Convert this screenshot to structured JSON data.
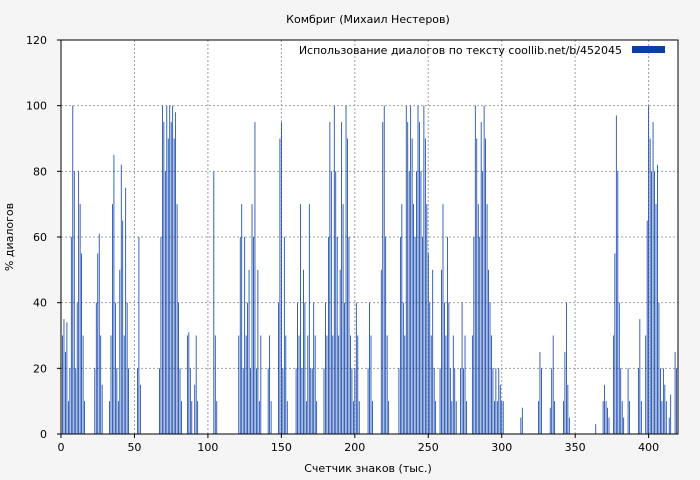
{
  "chart_data": {
    "type": "bar",
    "title": "Комбриг (Михаил Нестеров)",
    "xlabel": "Счетчик знаков (тыс.)",
    "ylabel": "% диалогов",
    "xlim": [
      0,
      420
    ],
    "ylim": [
      0,
      120
    ],
    "xticks": [
      0,
      50,
      100,
      150,
      200,
      250,
      300,
      350,
      400
    ],
    "yticks": [
      0,
      20,
      40,
      60,
      80,
      100,
      120
    ],
    "grid": true,
    "legend_position": "top-right",
    "series": [
      {
        "name": "Использование диалогов по тексту  coollib.net/b/452045",
        "color": "#0a3fa8",
        "bar_width": 0.5,
        "points": [
          [
            1,
            30
          ],
          [
            2,
            35
          ],
          [
            3,
            25
          ],
          [
            4,
            34
          ],
          [
            5,
            10
          ],
          [
            6,
            20
          ],
          [
            7,
            60
          ],
          [
            8,
            100
          ],
          [
            9,
            80
          ],
          [
            10,
            20
          ],
          [
            11,
            40
          ],
          [
            12,
            80
          ],
          [
            13,
            70
          ],
          [
            14,
            55
          ],
          [
            15,
            30
          ],
          [
            16,
            10
          ],
          [
            23,
            20
          ],
          [
            24,
            40
          ],
          [
            25,
            55
          ],
          [
            26,
            61
          ],
          [
            27,
            30
          ],
          [
            28,
            15
          ],
          [
            33,
            10
          ],
          [
            34,
            30
          ],
          [
            35,
            70
          ],
          [
            36,
            85
          ],
          [
            37,
            40
          ],
          [
            38,
            20
          ],
          [
            39,
            10
          ],
          [
            40,
            50
          ],
          [
            41,
            82
          ],
          [
            42,
            65
          ],
          [
            43,
            30
          ],
          [
            44,
            75
          ],
          [
            45,
            40
          ],
          [
            46,
            20
          ],
          [
            52,
            20
          ],
          [
            53,
            60
          ],
          [
            54,
            15
          ],
          [
            67,
            20
          ],
          [
            68,
            60
          ],
          [
            69,
            100
          ],
          [
            70,
            95
          ],
          [
            71,
            80
          ],
          [
            72,
            100
          ],
          [
            73,
            90
          ],
          [
            74,
            100
          ],
          [
            75,
            95
          ],
          [
            76,
            100
          ],
          [
            77,
            90
          ],
          [
            78,
            98
          ],
          [
            79,
            70
          ],
          [
            80,
            40
          ],
          [
            81,
            20
          ],
          [
            82,
            10
          ],
          [
            86,
            30
          ],
          [
            87,
            31
          ],
          [
            88,
            20
          ],
          [
            89,
            10
          ],
          [
            91,
            15
          ],
          [
            92,
            30
          ],
          [
            93,
            10
          ],
          [
            104,
            80
          ],
          [
            105,
            30
          ],
          [
            106,
            10
          ],
          [
            121,
            30
          ],
          [
            122,
            60
          ],
          [
            123,
            70
          ],
          [
            124,
            20
          ],
          [
            125,
            60
          ],
          [
            126,
            30
          ],
          [
            127,
            40
          ],
          [
            128,
            50
          ],
          [
            129,
            20
          ],
          [
            130,
            70
          ],
          [
            131,
            60
          ],
          [
            132,
            95
          ],
          [
            133,
            20
          ],
          [
            134,
            50
          ],
          [
            135,
            10
          ],
          [
            136,
            30
          ],
          [
            141,
            20
          ],
          [
            142,
            30
          ],
          [
            143,
            10
          ],
          [
            148,
            40
          ],
          [
            149,
            90
          ],
          [
            150,
            95
          ],
          [
            151,
            20
          ],
          [
            152,
            60
          ],
          [
            153,
            30
          ],
          [
            154,
            10
          ],
          [
            160,
            20
          ],
          [
            161,
            40
          ],
          [
            162,
            30
          ],
          [
            163,
            70
          ],
          [
            164,
            20
          ],
          [
            165,
            50
          ],
          [
            166,
            40
          ],
          [
            167,
            10
          ],
          [
            168,
            30
          ],
          [
            169,
            70
          ],
          [
            170,
            20
          ],
          [
            171,
            20
          ],
          [
            172,
            40
          ],
          [
            173,
            30
          ],
          [
            174,
            10
          ],
          [
            179,
            20
          ],
          [
            180,
            40
          ],
          [
            181,
            30
          ],
          [
            182,
            60
          ],
          [
            183,
            95
          ],
          [
            184,
            80
          ],
          [
            185,
            30
          ],
          [
            186,
            100
          ],
          [
            187,
            80
          ],
          [
            188,
            60
          ],
          [
            189,
            30
          ],
          [
            190,
            50
          ],
          [
            191,
            95
          ],
          [
            192,
            70
          ],
          [
            193,
            40
          ],
          [
            194,
            100
          ],
          [
            195,
            90
          ],
          [
            196,
            60
          ],
          [
            197,
            30
          ],
          [
            198,
            20
          ],
          [
            199,
            10
          ],
          [
            200,
            20
          ],
          [
            201,
            40
          ],
          [
            202,
            30
          ],
          [
            203,
            10
          ],
          [
            209,
            20
          ],
          [
            210,
            40
          ],
          [
            211,
            30
          ],
          [
            212,
            10
          ],
          [
            218,
            50
          ],
          [
            219,
            95
          ],
          [
            220,
            100
          ],
          [
            221,
            60
          ],
          [
            222,
            30
          ],
          [
            223,
            10
          ],
          [
            230,
            20
          ],
          [
            231,
            60
          ],
          [
            232,
            70
          ],
          [
            233,
            40
          ],
          [
            234,
            30
          ],
          [
            235,
            100
          ],
          [
            236,
            95
          ],
          [
            237,
            80
          ],
          [
            238,
            100
          ],
          [
            239,
            90
          ],
          [
            240,
            70
          ],
          [
            241,
            60
          ],
          [
            242,
            80
          ],
          [
            243,
            100
          ],
          [
            244,
            95
          ],
          [
            245,
            80
          ],
          [
            246,
            60
          ],
          [
            247,
            100
          ],
          [
            248,
            90
          ],
          [
            249,
            70
          ],
          [
            250,
            55
          ],
          [
            251,
            40
          ],
          [
            252,
            30
          ],
          [
            253,
            50
          ],
          [
            254,
            20
          ],
          [
            255,
            10
          ],
          [
            258,
            20
          ],
          [
            259,
            50
          ],
          [
            260,
            70
          ],
          [
            261,
            40
          ],
          [
            262,
            30
          ],
          [
            263,
            60
          ],
          [
            264,
            40
          ],
          [
            265,
            20
          ],
          [
            266,
            10
          ],
          [
            267,
            30
          ],
          [
            268,
            20
          ],
          [
            269,
            10
          ],
          [
            272,
            20
          ],
          [
            273,
            40
          ],
          [
            274,
            20
          ],
          [
            275,
            30
          ],
          [
            276,
            10
          ],
          [
            280,
            30
          ],
          [
            281,
            60
          ],
          [
            282,
            100
          ],
          [
            283,
            90
          ],
          [
            284,
            70
          ],
          [
            285,
            60
          ],
          [
            286,
            95
          ],
          [
            287,
            80
          ],
          [
            288,
            100
          ],
          [
            289,
            90
          ],
          [
            290,
            70
          ],
          [
            291,
            50
          ],
          [
            292,
            40
          ],
          [
            293,
            30
          ],
          [
            294,
            20
          ],
          [
            295,
            10
          ],
          [
            296,
            20
          ],
          [
            297,
            10
          ],
          [
            298,
            20
          ],
          [
            299,
            15
          ],
          [
            300,
            10
          ],
          [
            301,
            10
          ],
          [
            313,
            5
          ],
          [
            314,
            8
          ],
          [
            325,
            10
          ],
          [
            326,
            25
          ],
          [
            327,
            20
          ],
          [
            333,
            8
          ],
          [
            334,
            20
          ],
          [
            335,
            30
          ],
          [
            336,
            10
          ],
          [
            342,
            10
          ],
          [
            343,
            25
          ],
          [
            344,
            40
          ],
          [
            345,
            15
          ],
          [
            346,
            5
          ],
          [
            364,
            3
          ],
          [
            369,
            10
          ],
          [
            370,
            15
          ],
          [
            371,
            10
          ],
          [
            372,
            8
          ],
          [
            373,
            5
          ],
          [
            376,
            30
          ],
          [
            377,
            55
          ],
          [
            378,
            97
          ],
          [
            379,
            80
          ],
          [
            380,
            40
          ],
          [
            381,
            20
          ],
          [
            382,
            10
          ],
          [
            383,
            5
          ],
          [
            386,
            20
          ],
          [
            387,
            10
          ],
          [
            393,
            20
          ],
          [
            394,
            35
          ],
          [
            395,
            10
          ],
          [
            398,
            30
          ],
          [
            399,
            65
          ],
          [
            400,
            100
          ],
          [
            401,
            90
          ],
          [
            402,
            80
          ],
          [
            403,
            95
          ],
          [
            404,
            80
          ],
          [
            405,
            70
          ],
          [
            406,
            82
          ],
          [
            407,
            40
          ],
          [
            408,
            20
          ],
          [
            409,
            10
          ],
          [
            410,
            20
          ],
          [
            411,
            15
          ],
          [
            412,
            10
          ],
          [
            414,
            5
          ],
          [
            415,
            12
          ],
          [
            418,
            25
          ],
          [
            419,
            20
          ]
        ]
      }
    ]
  }
}
